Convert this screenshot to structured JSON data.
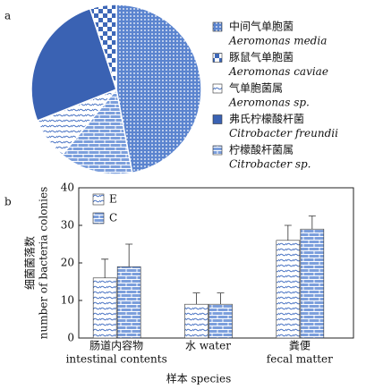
{
  "chart_data": [
    {
      "type": "pie",
      "label": "a",
      "categories": [
        [
          "中间气单胞菌",
          "Aeromonas media"
        ],
        [
          "豚鼠气单胞菌",
          "Aeromonas caviae"
        ],
        [
          "气单胞菌属",
          "Aeromonas sp."
        ],
        [
          "弗氏柠檬酸杆菌",
          "Citrobacter freundii"
        ],
        [
          "柠檬酸杆菌属",
          "Citrobacter sp."
        ]
      ],
      "values": [
        47,
        5,
        8,
        26,
        14
      ],
      "patterns": [
        "dots",
        "check",
        "wave",
        "solid",
        "brick"
      ],
      "order": [
        0,
        4,
        2,
        3,
        1
      ]
    },
    {
      "type": "bar",
      "label": "b",
      "categories": [
        [
          "肠道内容物",
          "intestinal contents"
        ],
        [
          "水 water"
        ],
        [
          "粪便",
          "fecal matter"
        ]
      ],
      "series": [
        {
          "name": "E",
          "pattern": "wave",
          "values": [
            16,
            9,
            26
          ],
          "errors": [
            5,
            3,
            4
          ]
        },
        {
          "name": "C",
          "pattern": "brick",
          "values": [
            19,
            9,
            29
          ],
          "errors": [
            6,
            3,
            3.5
          ]
        }
      ],
      "ylim": [
        0,
        40
      ],
      "yticks": [
        0,
        10,
        20,
        30,
        40
      ],
      "ylabel": [
        "细菌菌落数",
        "number of bacteria colonies"
      ],
      "xlabel": "样本 species"
    }
  ]
}
